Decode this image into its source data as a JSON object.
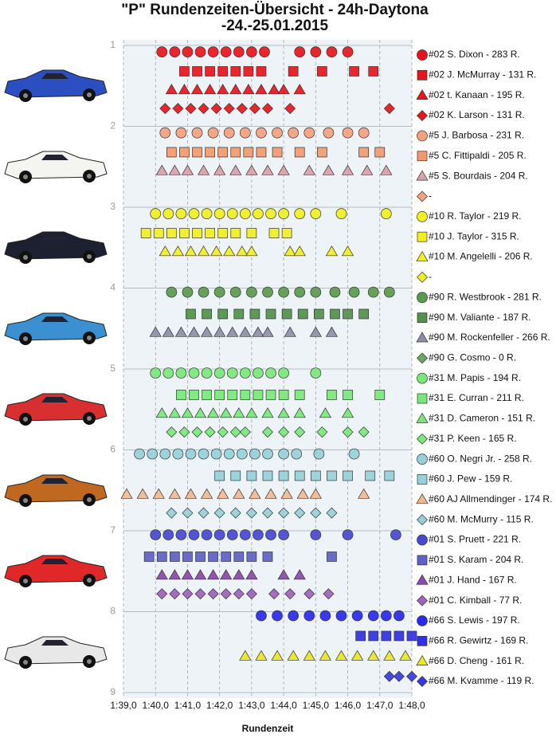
{
  "chart_data": {
    "type": "scatter",
    "title": "\"P\" Rundenzeiten-Übersicht  - 24h-Daytona",
    "subtitle": "-24.-25.01.2015",
    "x_label": "Rundenzeit",
    "xlim": [
      99,
      108
    ],
    "ylim": [
      9,
      1
    ],
    "xticks": [
      {
        "value": 99,
        "label": "1:39,0"
      },
      {
        "value": 100,
        "label": "1:40,0"
      },
      {
        "value": 101,
        "label": "1:41,0"
      },
      {
        "value": 102,
        "label": "1:42,0"
      },
      {
        "value": 103,
        "label": "1:43,0"
      },
      {
        "value": 104,
        "label": "1:44,0"
      },
      {
        "value": 105,
        "label": "1:45,0"
      },
      {
        "value": 106,
        "label": "1:46,0"
      },
      {
        "value": 107,
        "label": "1:47,0"
      },
      {
        "value": 108,
        "label": "1:48,0"
      }
    ],
    "yticks": [
      1,
      2,
      3,
      4,
      5,
      6,
      7,
      8,
      9
    ],
    "grid": true,
    "legend": "right",
    "series": [
      {
        "name": "#02 S. Dixon - 283 R.",
        "color": "#e8141c",
        "marker": "circle",
        "y": 1.08,
        "x": [
          100.2,
          100.6,
          101.0,
          101.4,
          101.8,
          102.2,
          102.6,
          103.0,
          103.4,
          104.5,
          105.0,
          105.5,
          106.0
        ]
      },
      {
        "name": "#02 J. McMurray - 131 R.",
        "color": "#e8141c",
        "marker": "square",
        "y": 1.32,
        "x": [
          100.9,
          101.3,
          101.7,
          102.1,
          102.5,
          102.9,
          103.3,
          104.3,
          105.2,
          106.2,
          106.8
        ]
      },
      {
        "name": "#02 t. Kanaan - 195 R.",
        "color": "#e8141c",
        "marker": "triangle",
        "y": 1.55,
        "x": [
          100.5,
          100.9,
          101.3,
          101.7,
          102.1,
          102.5,
          102.9,
          103.3,
          103.7,
          104.0,
          104.5
        ]
      },
      {
        "name": "#02 K. Larson - 131 R.",
        "color": "#e8141c",
        "marker": "diamond",
        "y": 1.78,
        "x": [
          100.3,
          100.7,
          101.1,
          101.5,
          101.9,
          102.3,
          102.7,
          103.1,
          103.5,
          104.2,
          107.3
        ]
      },
      {
        "name": "#5 J. Barbosa - 231 R.",
        "color": "#f4a07c",
        "marker": "circle",
        "y": 2.08,
        "x": [
          100.3,
          100.8,
          101.3,
          101.8,
          102.3,
          102.8,
          103.3,
          103.8,
          104.3,
          104.8,
          105.4,
          106.0,
          106.5
        ]
      },
      {
        "name": "#5 C. Fittipaldi - 205 R.",
        "color": "#f29a6c",
        "marker": "square",
        "y": 2.32,
        "x": [
          100.5,
          100.9,
          101.3,
          101.7,
          102.1,
          102.5,
          102.9,
          103.3,
          103.8,
          104.5,
          105.2,
          106.5,
          107.0
        ]
      },
      {
        "name": "#5 S. Bourdais - 204 R.",
        "color": "#d8a0a8",
        "marker": "triangle",
        "y": 2.55,
        "x": [
          100.2,
          100.6,
          101.0,
          101.5,
          102.0,
          102.5,
          103.0,
          103.5,
          104.0,
          104.8,
          105.4,
          106.0,
          106.6,
          107.2
        ]
      },
      {
        "name": "-",
        "color": "#f4a07c",
        "marker": "diamond",
        "y": 2.78,
        "x": []
      },
      {
        "name": "#10 R. Taylor - 219 R.",
        "color": "#f0f020",
        "marker": "circle",
        "y": 3.08,
        "x": [
          100.0,
          100.4,
          100.8,
          101.2,
          101.6,
          102.0,
          102.4,
          102.8,
          103.2,
          103.6,
          104.0,
          104.5,
          105.0,
          105.8,
          107.2
        ]
      },
      {
        "name": "#10 J. Taylor - 315 R.",
        "color": "#f0f020",
        "marker": "square",
        "y": 3.32,
        "x": [
          99.7,
          100.1,
          100.5,
          100.9,
          101.3,
          101.7,
          102.1,
          102.5,
          103.0,
          103.7,
          104.1
        ]
      },
      {
        "name": "#10 M. Angelelli - 206 R.",
        "color": "#f0f020",
        "marker": "triangle",
        "y": 3.55,
        "x": [
          100.3,
          100.7,
          101.1,
          101.5,
          101.9,
          102.3,
          102.7,
          103.0,
          104.2,
          104.5,
          105.5,
          106.0
        ]
      },
      {
        "name": "-",
        "color": "#f0f020",
        "marker": "diamond",
        "y": 3.78,
        "x": []
      },
      {
        "name": "#90 R. Westbrook - 281 R.",
        "color": "#5a9a4c",
        "marker": "circle",
        "y": 4.05,
        "x": [
          100.5,
          101.0,
          101.5,
          102.0,
          102.5,
          103.0,
          103.5,
          104.0,
          104.5,
          105.0,
          105.6,
          106.2,
          106.8,
          107.3
        ]
      },
      {
        "name": "#90 M. Valiante - 187 R.",
        "color": "#52914a",
        "marker": "square",
        "y": 4.32,
        "x": [
          101.1,
          101.6,
          102.1,
          102.6,
          103.1,
          103.6,
          104.1,
          104.6,
          105.1,
          105.6,
          106.0,
          106.5
        ]
      },
      {
        "name": "#90 M. Rockenfeller - 266 R.",
        "color": "#8e8ea8",
        "marker": "triangle",
        "y": 4.55,
        "x": [
          100.0,
          100.4,
          100.8,
          101.2,
          101.6,
          102.0,
          102.4,
          102.8,
          103.2,
          103.5,
          104.2,
          105.0,
          105.5
        ]
      },
      {
        "name": "#90 G. Cosmo - 0 R.",
        "color": "#6aa860",
        "marker": "diamond",
        "y": 4.78,
        "x": []
      },
      {
        "name": "#31 M. Papis - 194 R.",
        "color": "#78e878",
        "marker": "circle",
        "y": 5.05,
        "x": [
          100.0,
          100.4,
          100.8,
          101.2,
          101.6,
          102.0,
          102.4,
          102.8,
          103.2,
          103.6,
          104.0,
          105.0
        ]
      },
      {
        "name": "#31 E. Curran - 211 R.",
        "color": "#78e878",
        "marker": "square",
        "y": 5.32,
        "x": [
          100.8,
          101.2,
          101.6,
          102.0,
          102.4,
          102.8,
          103.2,
          103.6,
          104.0,
          104.5,
          105.5,
          106.0,
          107.0
        ]
      },
      {
        "name": "#31 D. Cameron - 151 R.",
        "color": "#78e878",
        "marker": "triangle",
        "y": 5.55,
        "x": [
          100.2,
          100.6,
          101.0,
          101.4,
          101.8,
          102.2,
          102.6,
          103.0,
          103.5,
          104.0,
          104.5,
          105.3,
          106.0
        ]
      },
      {
        "name": "#31 P. Keen - 165 R.",
        "color": "#78e878",
        "marker": "diamond",
        "y": 5.78,
        "x": [
          100.5,
          100.9,
          101.3,
          101.7,
          102.1,
          102.5,
          102.8,
          103.5,
          104.0,
          104.5,
          105.2,
          106.0,
          106.5
        ]
      },
      {
        "name": "#60 O. Negri Jr. - 258 R.",
        "color": "#96d0d8",
        "marker": "circle",
        "y": 6.05,
        "x": [
          99.5,
          99.9,
          100.3,
          100.7,
          101.1,
          101.5,
          101.9,
          102.3,
          102.7,
          103.1,
          103.5,
          104.0,
          104.4,
          105.1,
          106.2
        ]
      },
      {
        "name": "#60 J. Pew - 159 R.",
        "color": "#96d0d8",
        "marker": "square",
        "y": 6.32,
        "x": [
          102.0,
          102.5,
          103.0,
          103.5,
          104.0,
          104.5,
          105.0,
          105.5,
          106.0,
          106.7,
          107.3
        ]
      },
      {
        "name": "#60 AJ Allmendinger - 174 R.",
        "color": "#f4b890",
        "marker": "triangle",
        "y": 6.55,
        "x": [
          99.1,
          99.6,
          100.1,
          100.6,
          101.1,
          101.6,
          102.1,
          102.6,
          103.1,
          103.6,
          104.1,
          104.6,
          105.0,
          106.5
        ]
      },
      {
        "name": "#60 M. McMurry - 115 R.",
        "color": "#96d0d8",
        "marker": "diamond",
        "y": 6.78,
        "x": [
          100.5,
          101.0,
          101.5,
          102.0,
          102.5,
          103.0,
          103.5,
          104.0,
          104.5,
          105.0,
          105.5
        ]
      },
      {
        "name": "#01 S. Pruett - 221 R.",
        "color": "#4848d0",
        "marker": "circle",
        "y": 7.05,
        "x": [
          100.0,
          100.4,
          100.8,
          101.2,
          101.6,
          102.0,
          102.4,
          102.8,
          103.2,
          103.6,
          104.0,
          105.0,
          106.0,
          107.5
        ]
      },
      {
        "name": "#01 S. Karam - 204 R.",
        "color": "#6060c8",
        "marker": "square",
        "y": 7.32,
        "x": [
          99.8,
          100.2,
          100.6,
          101.0,
          101.4,
          101.8,
          102.2,
          102.6,
          103.0,
          103.5,
          105.5
        ]
      },
      {
        "name": "#01 J. Hand - 167 R.",
        "color": "#8a48b0",
        "marker": "triangle",
        "y": 7.55,
        "x": [
          100.2,
          100.6,
          101.0,
          101.4,
          101.8,
          102.2,
          102.6,
          103.0,
          104.0,
          104.5
        ]
      },
      {
        "name": "#01 C. Kimball - 77 R.",
        "color": "#a060c0",
        "marker": "diamond",
        "y": 7.78,
        "x": [
          100.2,
          100.6,
          101.0,
          101.4,
          101.8,
          102.2,
          102.6,
          103.0,
          103.7,
          104.2,
          104.8,
          105.4
        ]
      },
      {
        "name": "#66 S. Lewis - 197 R.",
        "color": "#2828f0",
        "marker": "circle",
        "y": 8.05,
        "x": [
          103.3,
          103.8,
          104.3,
          104.8,
          105.3,
          105.8,
          106.3,
          106.8,
          107.2,
          107.6
        ]
      },
      {
        "name": "#66 R. Gewirtz - 169 R.",
        "color": "#3030e8",
        "marker": "square",
        "y": 8.3,
        "x": [
          106.4,
          106.8,
          107.2,
          107.6,
          108.0
        ]
      },
      {
        "name": "#66 D. Cheng - 161 R.",
        "color": "#e8e820",
        "marker": "triangle",
        "y": 8.55,
        "x": [
          102.8,
          103.3,
          103.8,
          104.3,
          104.8,
          105.3,
          105.8,
          106.3,
          106.8,
          107.3,
          107.8
        ]
      },
      {
        "name": "#66 M. Kvamme - 119 R.",
        "color": "#3838e0",
        "marker": "diamond",
        "y": 8.8,
        "x": [
          107.3,
          107.6,
          108.0
        ]
      }
    ]
  }
}
